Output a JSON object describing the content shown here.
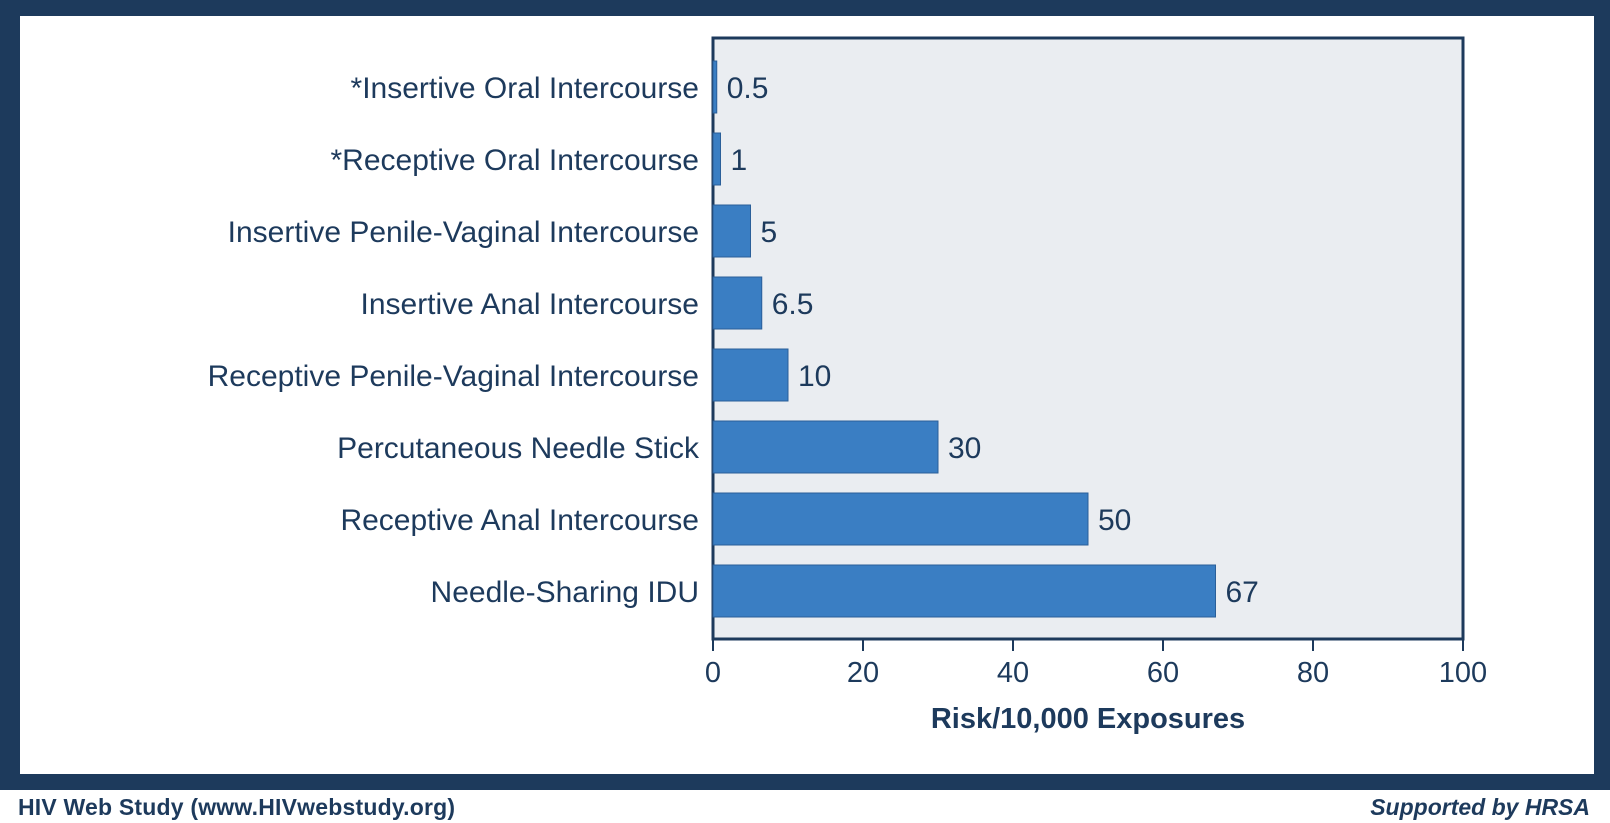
{
  "footer": {
    "left_text": "HIV Web Study  (www.HIVwebstudy.org)",
    "right_text": "Supported by HRSA"
  },
  "colors": {
    "frame": "#1d3a5c",
    "bar": "#3a7ec3",
    "plot_background": "#eaedf1",
    "text": "#1d3a5c"
  },
  "chart_data": {
    "type": "bar",
    "orientation": "horizontal",
    "categories": [
      "*Insertive Oral Intercourse",
      "*Receptive Oral Intercourse",
      "Insertive Penile-Vaginal Intercourse",
      "Insertive Anal Intercourse",
      "Receptive Penile-Vaginal Intercourse",
      "Percutaneous Needle Stick",
      "Receptive Anal Intercourse",
      "Needle-Sharing IDU"
    ],
    "values": [
      0.5,
      1,
      5,
      6.5,
      10,
      30,
      50,
      67
    ],
    "value_labels": [
      "0.5",
      "1",
      "5",
      "6.5",
      "10",
      "30",
      "50",
      "67"
    ],
    "xlabel": "Risk/10,000 Exposures",
    "xlim": [
      0,
      100
    ],
    "xticks": [
      0,
      20,
      40,
      60,
      80,
      100
    ],
    "xtick_labels": [
      "0",
      "20",
      "40",
      "60",
      "80",
      "100"
    ],
    "grid": false,
    "legend": "none"
  }
}
